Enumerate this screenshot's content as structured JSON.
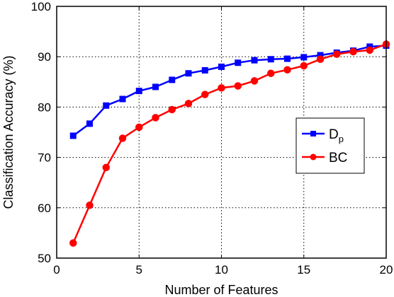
{
  "chart_data": {
    "type": "line",
    "title": "",
    "xlabel": "Number of Features",
    "ylabel": "Classification Accuracy (%)",
    "xlim": [
      0,
      20
    ],
    "ylim": [
      50,
      100
    ],
    "xticks": [
      "0",
      "5",
      "10",
      "15",
      "20"
    ],
    "yticks": [
      "50",
      "60",
      "70",
      "80",
      "90",
      "100"
    ],
    "grid": true,
    "legend_position": "right",
    "x": [
      1,
      2,
      3,
      4,
      5,
      6,
      7,
      8,
      9,
      10,
      11,
      12,
      13,
      14,
      15,
      16,
      17,
      18,
      19,
      20
    ],
    "series": [
      {
        "name": "D",
        "name_subscript": "p",
        "color": "#0000ff",
        "marker": "square",
        "values": [
          74.3,
          76.7,
          80.3,
          81.6,
          83.2,
          84.0,
          85.4,
          86.7,
          87.3,
          88.0,
          88.8,
          89.3,
          89.5,
          89.6,
          89.9,
          90.3,
          90.8,
          91.2,
          92.0,
          92.2
        ]
      },
      {
        "name": "BC",
        "color": "#ff0000",
        "marker": "circle",
        "values": [
          53.0,
          60.5,
          68.0,
          73.8,
          76.0,
          77.9,
          79.5,
          80.7,
          82.5,
          83.8,
          84.2,
          85.2,
          86.7,
          87.4,
          88.2,
          89.5,
          90.5,
          91.0,
          91.3,
          92.5
        ]
      }
    ]
  }
}
